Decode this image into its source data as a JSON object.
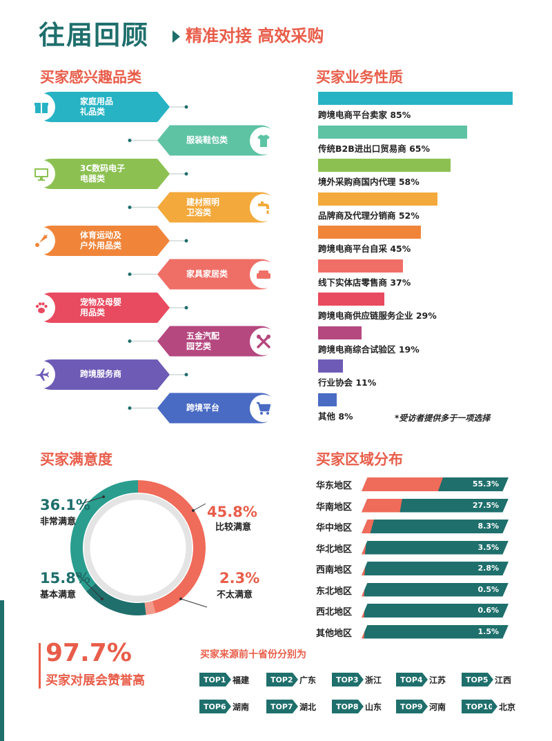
{
  "header": {
    "title": "往届回顾",
    "subtitle": "精准对接 高效采购"
  },
  "interest": {
    "title": "买家感兴趣品类",
    "items": [
      {
        "lines": [
          "家庭用品",
          "礼品类"
        ],
        "icon": "gift-icon",
        "color": "#27b3c4"
      },
      {
        "lines": [
          "服装鞋包类"
        ],
        "icon": "shirt-icon",
        "color": "#5dc3a3"
      },
      {
        "lines": [
          "3C数码电子",
          "电器类"
        ],
        "icon": "monitor-icon",
        "color": "#8cc152"
      },
      {
        "lines": [
          "建材照明",
          "卫浴类"
        ],
        "icon": "faucet-icon",
        "color": "#f3a93b"
      },
      {
        "lines": [
          "体育运动及",
          "户外用品类"
        ],
        "icon": "shuttlecock-icon",
        "color": "#f0853a"
      },
      {
        "lines": [
          "家具家居类"
        ],
        "icon": "sofa-icon",
        "color": "#ef6f67"
      },
      {
        "lines": [
          "宠物及母婴",
          "用品类"
        ],
        "icon": "paw-icon",
        "color": "#e84a5f"
      },
      {
        "lines": [
          "五金汽配",
          "园艺类"
        ],
        "icon": "tools-icon",
        "color": "#b5487f"
      },
      {
        "lines": [
          "跨境服务商"
        ],
        "icon": "airplane-icon",
        "color": "#6e5bb5"
      },
      {
        "lines": [
          "跨境平台"
        ],
        "icon": "cart-icon",
        "color": "#4a6bc4"
      }
    ]
  },
  "nature": {
    "title": "买家业务性质",
    "note": "*受访者提供多于一项选择",
    "chart_data": {
      "type": "bar",
      "categories": [
        "跨境电商平台卖家",
        "传统B2B进出口贸易商",
        "境外采购商国内代理",
        "品牌商及代理分销商",
        "跨境电商平台自采",
        "线下实体店零售商",
        "跨境电商供应链服务企业",
        "跨境电商综合试验区",
        "行业协会",
        "其他"
      ],
      "values": [
        85,
        65,
        58,
        52,
        45,
        37,
        29,
        19,
        11,
        8
      ],
      "labels": [
        "跨境电商平台卖家 85%",
        "传统B2B进出口贸易商 65%",
        "境外采购商国内代理 58%",
        "品牌商及代理分销商 52%",
        "跨境电商平台自采 45%",
        "线下实体店零售商 37%",
        "跨境电商供应链服务企业 29%",
        "跨境电商综合试验区 19%",
        "行业协会 11%",
        "其他 8%"
      ],
      "colors": [
        "#27b3c4",
        "#5dc3a3",
        "#8cc152",
        "#f3a93b",
        "#f0853a",
        "#ef6f67",
        "#e84a5f",
        "#b5487f",
        "#6e5bb5",
        "#4a6bc4"
      ]
    }
  },
  "satisfaction": {
    "title": "买家满意度",
    "chart_data": {
      "type": "pie",
      "categories": [
        "比较满意",
        "不太满意",
        "基本满意",
        "非常满意"
      ],
      "values": [
        45.8,
        2.3,
        15.8,
        36.1
      ],
      "pct_labels": [
        "45.8%",
        "2.3%",
        "15.8%",
        "36.1%"
      ],
      "colors": [
        "#ef6b5a",
        "#f29a8c",
        "#1f6f6c",
        "#2a9d8f"
      ]
    }
  },
  "region": {
    "title": "买家区域分布",
    "chart_data": {
      "type": "bar",
      "categories": [
        "华东地区",
        "华南地区",
        "华中地区",
        "华北地区",
        "西南地区",
        "东北地区",
        "西北地区",
        "其他地区"
      ],
      "values": [
        55.3,
        27.5,
        8.3,
        3.5,
        2.8,
        0.5,
        0.6,
        1.5
      ],
      "value_labels": [
        "55.3%",
        "27.5%",
        "8.3%",
        "3.5%",
        "2.8%",
        "0.5%",
        "0.6%",
        "1.5%"
      ],
      "colors": {
        "share": "#ef6b5a",
        "rest": "#1f6f6c"
      }
    }
  },
  "praise": {
    "value": "97.7%",
    "label": "买家对展会赞誉高"
  },
  "top_provinces": {
    "title": "买家来源前十省份分别为",
    "items": [
      {
        "tag": "TOP1",
        "name": "福建"
      },
      {
        "tag": "TOP2",
        "name": "广东"
      },
      {
        "tag": "TOP3",
        "name": "浙江"
      },
      {
        "tag": "TOP4",
        "name": "江苏"
      },
      {
        "tag": "TOP5",
        "name": "江西"
      },
      {
        "tag": "TOP6",
        "name": "湖南"
      },
      {
        "tag": "TOP7",
        "name": "湖北"
      },
      {
        "tag": "TOP8",
        "name": "山东"
      },
      {
        "tag": "TOP9",
        "name": "河南"
      },
      {
        "tag": "TOP10",
        "name": "北京"
      }
    ]
  }
}
